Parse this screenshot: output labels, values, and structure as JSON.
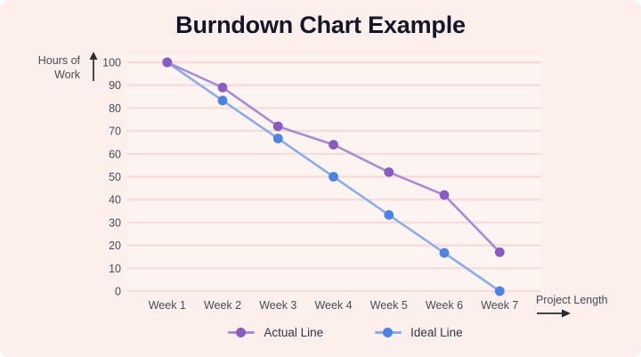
{
  "title": "Burndown Chart Example",
  "colors": {
    "page_background": "#ffffff",
    "card_background": "#fcefec",
    "plot_background": "#fdf3f1",
    "gridline": "#f6dcda",
    "title_text": "#141627",
    "axis_text": "#4a4a55",
    "arrow": "#2b2b33"
  },
  "y_axis": {
    "label_lines": [
      "Hours of",
      "Work"
    ]
  },
  "x_axis": {
    "label": "Project Length"
  },
  "chart_data": {
    "type": "line",
    "x": [
      "Week 1",
      "Week 2",
      "Week 3",
      "Week 4",
      "Week 5",
      "Week 6",
      "Week 7"
    ],
    "series": [
      {
        "name": "Actual Line",
        "values": [
          100,
          89,
          72,
          64,
          52,
          42,
          17
        ],
        "line_color": "#aa8ad3",
        "point_color": "#8a5cc2"
      },
      {
        "name": "Ideal Line",
        "values": [
          100,
          83.3,
          66.7,
          50,
          33.3,
          16.7,
          0
        ],
        "line_color": "#8badea",
        "point_color": "#4c84e4"
      }
    ],
    "title": "Burndown Chart Example",
    "xlabel": "Project Length",
    "ylabel": "Hours of Work",
    "ylim": [
      0,
      100
    ],
    "yticks": [
      0,
      10,
      20,
      30,
      40,
      50,
      60,
      70,
      80,
      90,
      100
    ],
    "grid": true,
    "legend_position": "bottom"
  }
}
